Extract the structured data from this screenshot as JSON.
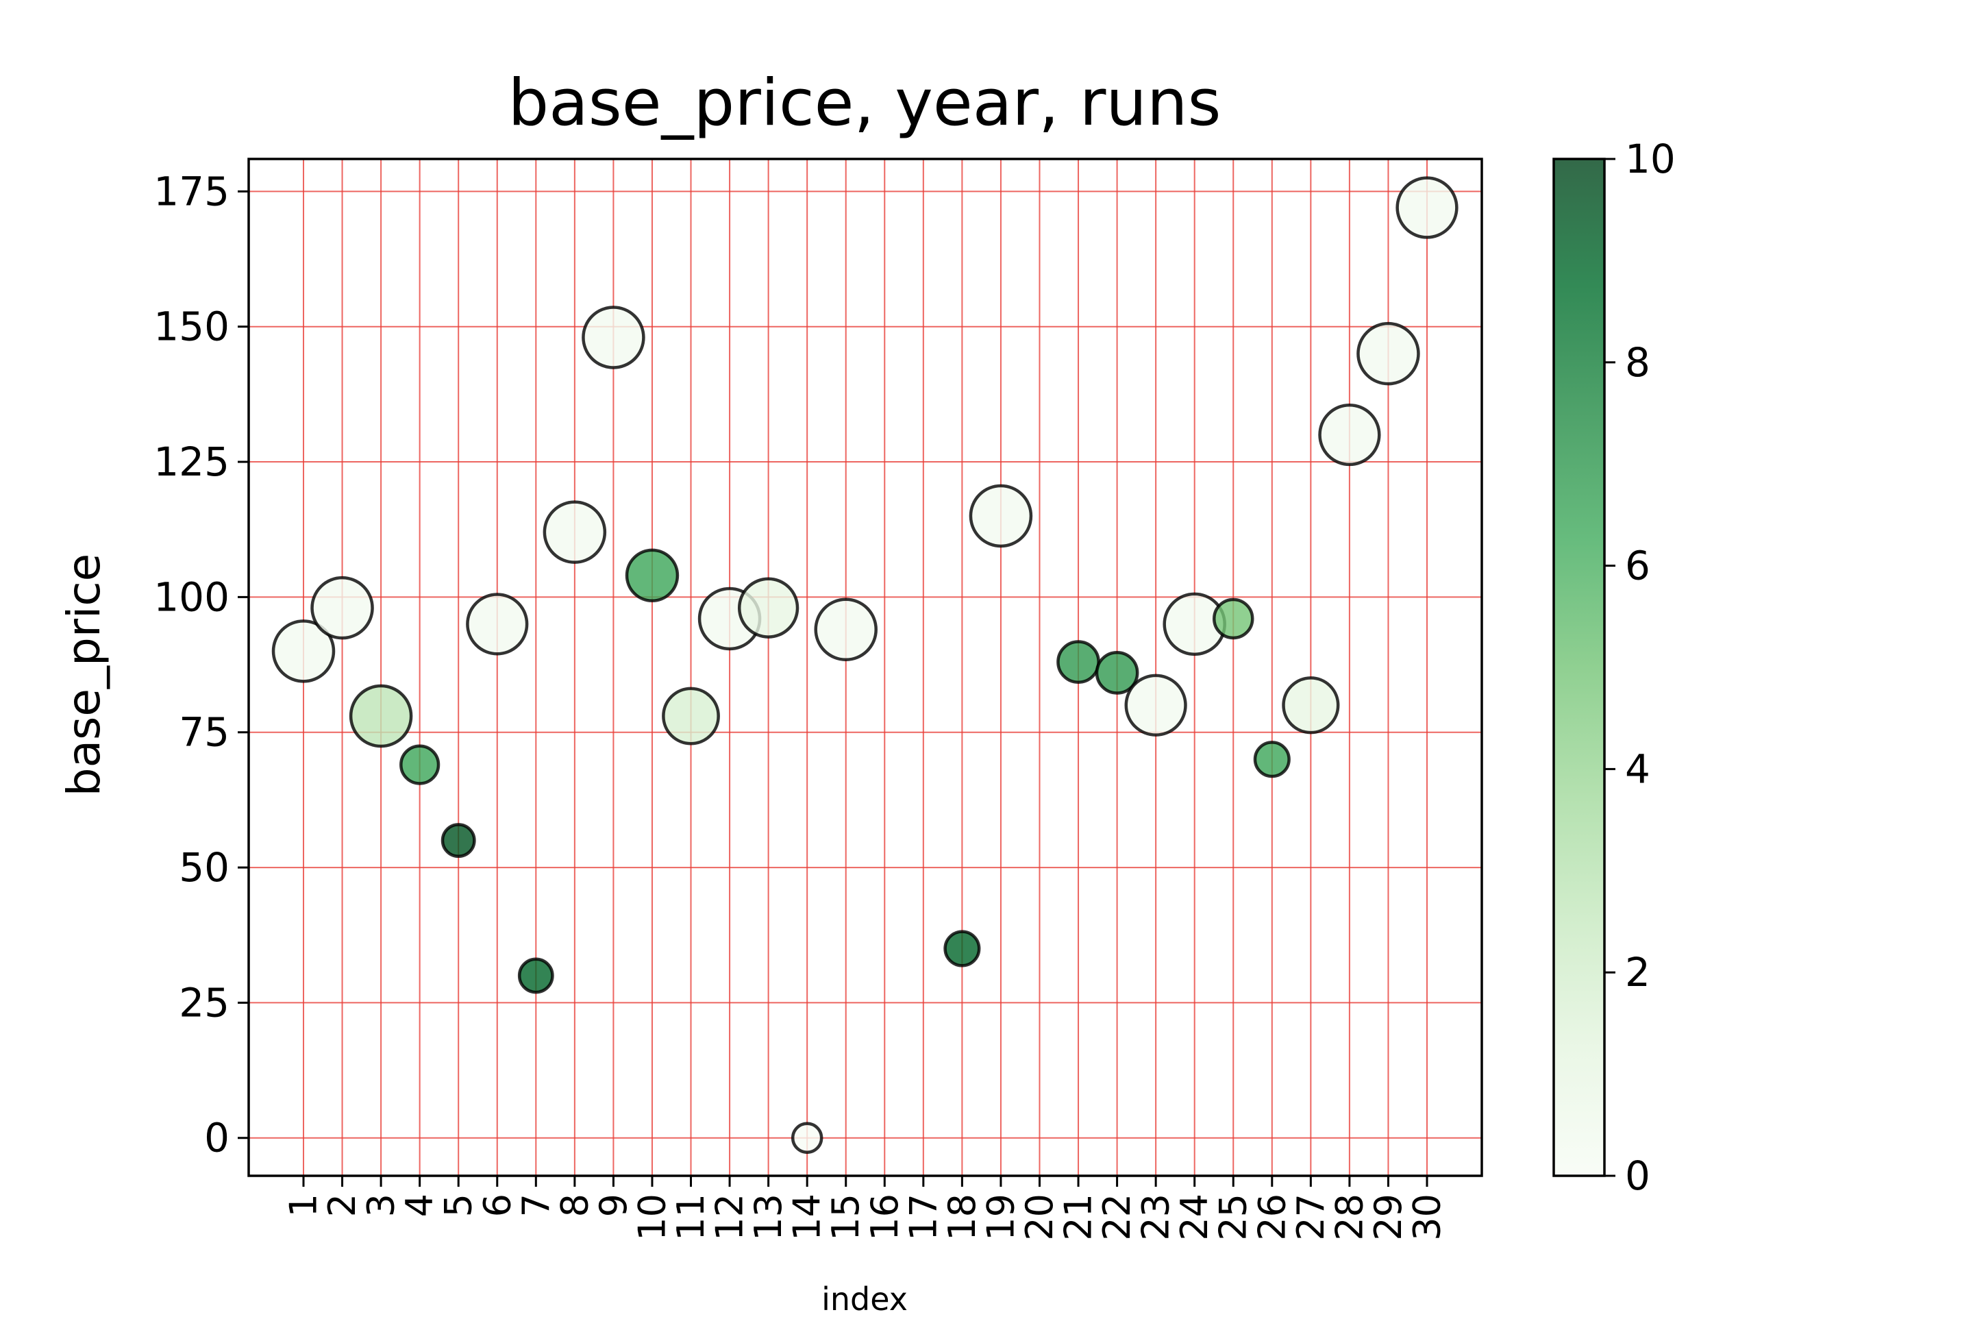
{
  "chart_data": {
    "type": "scatter",
    "title": "base_price, year, runs",
    "xlabel": "index",
    "ylabel": "base_price",
    "x_categories": [
      "1",
      "2",
      "3",
      "4",
      "5",
      "6",
      "7",
      "8",
      "9",
      "10",
      "11",
      "12",
      "13",
      "14",
      "15",
      "16",
      "17",
      "18",
      "19",
      "20",
      "21",
      "22",
      "23",
      "24",
      "25",
      "26",
      "27",
      "28",
      "29",
      "30"
    ],
    "ylim": [
      -7,
      181
    ],
    "yticks": [
      0,
      25,
      50,
      75,
      100,
      125,
      150,
      175
    ],
    "grid": true,
    "grid_color": "#e8403a",
    "colorbar": {
      "min": 0,
      "max": 10,
      "ticks": [
        0,
        2,
        4,
        6,
        8,
        10
      ],
      "colormap": "Greens"
    },
    "points": [
      {
        "x": "1",
        "y": 90,
        "color_value": 0.3,
        "size": 1
      },
      {
        "x": "2",
        "y": 98,
        "color_value": 0.3,
        "size": 1
      },
      {
        "x": "3",
        "y": 78,
        "color_value": 2.8,
        "size": 1
      },
      {
        "x": "4",
        "y": 69,
        "color_value": 6.5,
        "size": 0.48
      },
      {
        "x": "5",
        "y": 55,
        "color_value": 9.5,
        "size": 0.35
      },
      {
        "x": "6",
        "y": 95,
        "color_value": 0.3,
        "size": 0.98
      },
      {
        "x": "7",
        "y": 30,
        "color_value": 9,
        "size": 0.38
      },
      {
        "x": "8",
        "y": 112,
        "color_value": 0.3,
        "size": 1
      },
      {
        "x": "9",
        "y": 148,
        "color_value": 0.3,
        "size": 1
      },
      {
        "x": "10",
        "y": 104,
        "color_value": 6.5,
        "size": 0.78
      },
      {
        "x": "11",
        "y": 78,
        "color_value": 1.8,
        "size": 0.88
      },
      {
        "x": "12",
        "y": 96,
        "color_value": 0.3,
        "size": 1
      },
      {
        "x": "13",
        "y": 98,
        "color_value": 1,
        "size": 0.95
      },
      {
        "x": "14",
        "y": 0,
        "color_value": 0,
        "size": 0.28
      },
      {
        "x": "15",
        "y": 94,
        "color_value": 0.3,
        "size": 1
      },
      {
        "x": "18",
        "y": 35,
        "color_value": 9,
        "size": 0.4
      },
      {
        "x": "19",
        "y": 115,
        "color_value": 0.3,
        "size": 1
      },
      {
        "x": "21",
        "y": 88,
        "color_value": 7,
        "size": 0.55
      },
      {
        "x": "22",
        "y": 86,
        "color_value": 7,
        "size": 0.55
      },
      {
        "x": "23",
        "y": 80,
        "color_value": 0.3,
        "size": 0.98
      },
      {
        "x": "24",
        "y": 95,
        "color_value": 0.3,
        "size": 1
      },
      {
        "x": "25",
        "y": 96,
        "color_value": 5,
        "size": 0.5
      },
      {
        "x": "26",
        "y": 70,
        "color_value": 6.5,
        "size": 0.4
      },
      {
        "x": "27",
        "y": 80,
        "color_value": 1,
        "size": 0.87
      },
      {
        "x": "28",
        "y": 130,
        "color_value": 0.3,
        "size": 0.98
      },
      {
        "x": "29",
        "y": 145,
        "color_value": 0.3,
        "size": 1
      },
      {
        "x": "30",
        "y": 172,
        "color_value": 0.3,
        "size": 0.98
      }
    ]
  }
}
